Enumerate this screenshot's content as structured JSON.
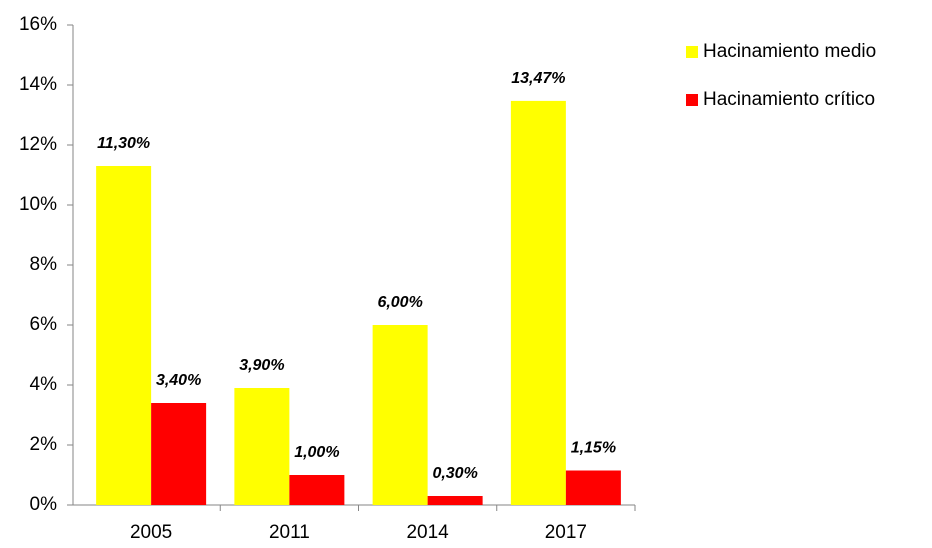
{
  "chart_data": {
    "type": "bar",
    "categories": [
      "2005",
      "2011",
      "2014",
      "2017"
    ],
    "series": [
      {
        "name": "Hacinamiento medio",
        "color": "#ffff00",
        "values": [
          11.3,
          3.9,
          6.0,
          13.47
        ],
        "value_labels": [
          "11,30%",
          "3,90%",
          "6,00%",
          "13,47%"
        ]
      },
      {
        "name": "Hacinamiento crítico",
        "color": "#ff0000",
        "values": [
          3.4,
          1.0,
          0.3,
          1.15
        ],
        "value_labels": [
          "3,40%",
          "1,00%",
          "0,30%",
          "1,15%"
        ]
      }
    ],
    "ylim": [
      0,
      16
    ],
    "yticks": [
      {
        "value": 0,
        "label": "0%"
      },
      {
        "value": 2,
        "label": "2%"
      },
      {
        "value": 4,
        "label": "4%"
      },
      {
        "value": 6,
        "label": "6%"
      },
      {
        "value": 8,
        "label": "8%"
      },
      {
        "value": 10,
        "label": "10%"
      },
      {
        "value": 12,
        "label": "12%"
      },
      {
        "value": 14,
        "label": "14%"
      },
      {
        "value": 16,
        "label": "16%"
      }
    ],
    "grid": false,
    "legend": "right"
  }
}
